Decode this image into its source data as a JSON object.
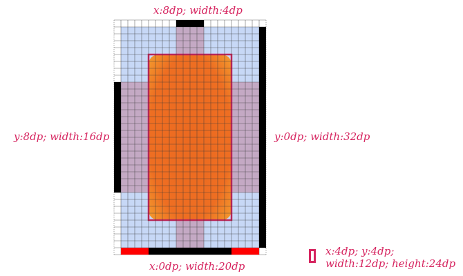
{
  "labels": {
    "top": "x:8dp; width:4dp",
    "left": "y:8dp; width:16dp",
    "right": "y:0dp; width:32dp",
    "bottom": "x:0dp; width:20dp"
  },
  "legend": {
    "line1": "x:4dp; y:4dp;",
    "line2": "width:12dp; height:24dp"
  },
  "colors": {
    "accent": "#d6245f",
    "grid_bg": "#c7d8f6",
    "band": "#c4a9c4",
    "band_overlap": "#b79bb5",
    "fill_orange": "#ee6e22",
    "fill_orange_light": "#f5a230",
    "edge_black": "#000000",
    "edge_red": "#ff0000"
  }
}
